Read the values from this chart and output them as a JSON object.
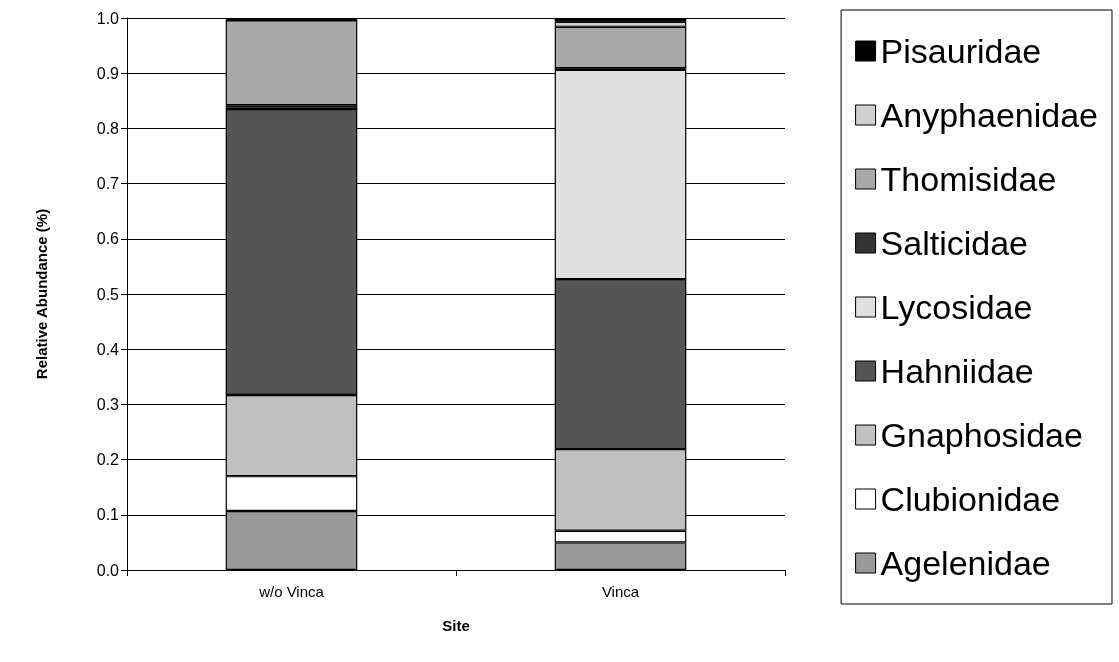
{
  "chart_data": {
    "type": "bar",
    "stacked": true,
    "xlabel": "Site",
    "ylabel": "Relative Abundance (%)",
    "categories": [
      "w/o Vinca",
      "Vinca"
    ],
    "series": [
      {
        "name": "Agelenidae",
        "color": "#999999",
        "values": [
          0.107,
          0.05
        ]
      },
      {
        "name": "Clubionidae",
        "color": "#ffffff",
        "values": [
          0.063,
          0.021
        ]
      },
      {
        "name": "Gnaphosidae",
        "color": "#c0c0c0",
        "values": [
          0.147,
          0.148
        ]
      },
      {
        "name": "Hahniidae",
        "color": "#555555",
        "values": [
          0.518,
          0.308
        ]
      },
      {
        "name": "Lycosidae",
        "color": "#e0e0e0",
        "values": [
          0,
          0.379
        ]
      },
      {
        "name": "Salticidae",
        "color": "#333333",
        "values": [
          0.007,
          0.003
        ]
      },
      {
        "name": "Thomisidae",
        "color": "#a8a8a8",
        "values": [
          0.154,
          0.075
        ]
      },
      {
        "name": "Anyphaenidae",
        "color": "#d0d0d0",
        "values": [
          0,
          0.009
        ]
      },
      {
        "name": "Pisauridae",
        "color": "#000000",
        "values": [
          0.002,
          0.007
        ]
      }
    ],
    "ylim": [
      0,
      1
    ],
    "yticks": [
      {
        "value": 0,
        "label": "0.0"
      },
      0.1,
      0.2,
      0.3,
      0.4,
      0.5,
      0.6,
      0.7,
      0.8,
      0.9,
      {
        "value": 1,
        "label": "1.0"
      }
    ],
    "grid": "y",
    "legend": "right"
  }
}
